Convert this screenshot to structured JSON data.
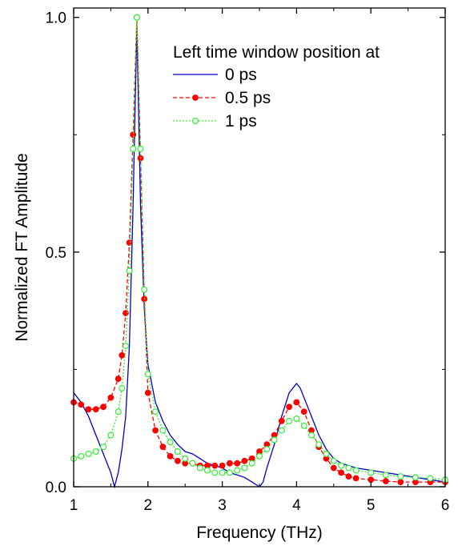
{
  "chart_data": {
    "type": "line",
    "title": "",
    "xlabel": "Frequency (THz)",
    "ylabel": "Normalized FT Amplitude",
    "xlim": [
      1,
      6
    ],
    "ylim": [
      0,
      1.02
    ],
    "xticks": [
      1,
      2,
      3,
      4,
      5,
      6
    ],
    "xtick_labels": [
      "1",
      "2",
      "3",
      "4",
      "5",
      "6"
    ],
    "yticks": [
      0,
      0.5,
      1.0
    ],
    "ytick_labels": [
      "0.0",
      "0.5",
      "1.0"
    ],
    "grid": false,
    "legend": {
      "title": "Left time window position at",
      "placement": "top-right"
    },
    "series": [
      {
        "name": "0 ps",
        "color": "#0000cc",
        "style": "solid",
        "marker": "none",
        "x": [
          1.0,
          1.1,
          1.2,
          1.3,
          1.4,
          1.5,
          1.55,
          1.6,
          1.65,
          1.7,
          1.75,
          1.8,
          1.85,
          1.9,
          1.95,
          2.0,
          2.1,
          2.2,
          2.3,
          2.4,
          2.5,
          2.6,
          2.7,
          2.8,
          2.9,
          3.0,
          3.1,
          3.2,
          3.3,
          3.4,
          3.5,
          3.55,
          3.6,
          3.7,
          3.8,
          3.9,
          4.0,
          4.05,
          4.1,
          4.2,
          4.3,
          4.4,
          4.5,
          4.6,
          4.7,
          4.8,
          5.0,
          5.2,
          5.4,
          5.6,
          5.8,
          6.0
        ],
        "y": [
          0.2,
          0.18,
          0.15,
          0.11,
          0.07,
          0.03,
          0.0,
          0.03,
          0.08,
          0.15,
          0.3,
          0.6,
          0.98,
          0.6,
          0.38,
          0.26,
          0.18,
          0.14,
          0.11,
          0.09,
          0.075,
          0.07,
          0.06,
          0.05,
          0.045,
          0.04,
          0.03,
          0.025,
          0.02,
          0.01,
          0.0,
          0.01,
          0.04,
          0.09,
          0.15,
          0.2,
          0.22,
          0.21,
          0.19,
          0.15,
          0.11,
          0.08,
          0.06,
          0.05,
          0.045,
          0.04,
          0.035,
          0.03,
          0.025,
          0.02,
          0.015,
          0.01
        ]
      },
      {
        "name": "0.5 ps",
        "color": "#ff0000",
        "style": "dashed",
        "marker": "filled-circle",
        "x": [
          1.0,
          1.1,
          1.2,
          1.3,
          1.4,
          1.5,
          1.6,
          1.65,
          1.7,
          1.75,
          1.8,
          1.85,
          1.9,
          1.95,
          2.0,
          2.1,
          2.2,
          2.3,
          2.4,
          2.5,
          2.6,
          2.7,
          2.8,
          2.9,
          3.0,
          3.1,
          3.2,
          3.3,
          3.4,
          3.5,
          3.6,
          3.7,
          3.8,
          3.9,
          4.0,
          4.1,
          4.2,
          4.3,
          4.4,
          4.5,
          4.6,
          4.7,
          4.8,
          5.0,
          5.2,
          5.4,
          5.6,
          5.8,
          6.0
        ],
        "y": [
          0.18,
          0.175,
          0.165,
          0.165,
          0.17,
          0.19,
          0.23,
          0.28,
          0.37,
          0.52,
          0.75,
          1.0,
          0.7,
          0.4,
          0.2,
          0.12,
          0.085,
          0.065,
          0.055,
          0.05,
          0.05,
          0.045,
          0.045,
          0.045,
          0.045,
          0.05,
          0.05,
          0.055,
          0.06,
          0.075,
          0.09,
          0.11,
          0.14,
          0.17,
          0.18,
          0.16,
          0.12,
          0.085,
          0.06,
          0.04,
          0.03,
          0.022,
          0.018,
          0.015,
          0.012,
          0.01,
          0.01,
          0.01,
          0.01
        ]
      },
      {
        "name": "1 ps",
        "color": "#33ee33",
        "style": "dotted",
        "marker": "open-circle",
        "x": [
          1.0,
          1.1,
          1.2,
          1.3,
          1.4,
          1.5,
          1.6,
          1.65,
          1.7,
          1.75,
          1.8,
          1.85,
          1.9,
          1.95,
          2.0,
          2.1,
          2.2,
          2.3,
          2.4,
          2.5,
          2.6,
          2.7,
          2.8,
          2.9,
          3.0,
          3.1,
          3.2,
          3.3,
          3.4,
          3.5,
          3.6,
          3.7,
          3.8,
          3.9,
          4.0,
          4.1,
          4.2,
          4.3,
          4.4,
          4.5,
          4.6,
          4.7,
          4.8,
          5.0,
          5.2,
          5.4,
          5.6,
          5.8,
          6.0
        ],
        "y": [
          0.06,
          0.065,
          0.07,
          0.075,
          0.085,
          0.11,
          0.16,
          0.21,
          0.3,
          0.46,
          0.72,
          1.0,
          0.72,
          0.42,
          0.24,
          0.16,
          0.12,
          0.095,
          0.075,
          0.06,
          0.05,
          0.04,
          0.035,
          0.03,
          0.03,
          0.03,
          0.035,
          0.04,
          0.05,
          0.065,
          0.08,
          0.1,
          0.12,
          0.14,
          0.145,
          0.13,
          0.11,
          0.09,
          0.07,
          0.055,
          0.045,
          0.04,
          0.035,
          0.03,
          0.025,
          0.022,
          0.02,
          0.018,
          0.015
        ]
      }
    ]
  }
}
